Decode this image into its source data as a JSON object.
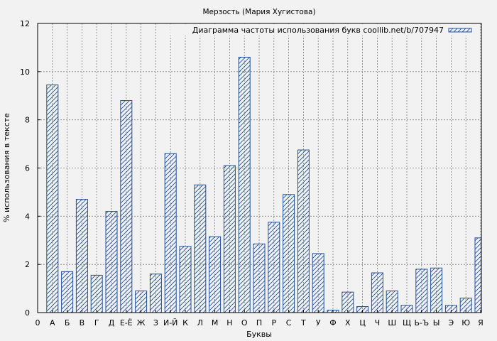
{
  "chart_data": {
    "type": "bar",
    "title": "Мерзость (Мария Хугистова)",
    "xlabel": "Буквы",
    "ylabel": "% использования в тексте",
    "legend": "Диаграмма частоты использования букв coollib.net/b/707947",
    "legend_position": "top-right",
    "grid": true,
    "ylim": [
      0,
      12
    ],
    "yticks": [
      0,
      2,
      4,
      6,
      8,
      10,
      12
    ],
    "x_first_label": "0",
    "categories": [
      "А",
      "Б",
      "В",
      "Г",
      "Д",
      "Е-Ё",
      "Ж",
      "З",
      "И-Й",
      "К",
      "Л",
      "М",
      "Н",
      "О",
      "П",
      "Р",
      "С",
      "Т",
      "У",
      "Ф",
      "Х",
      "Ц",
      "Ч",
      "Ш",
      "Щ",
      "Ь-Ъ",
      "Ы",
      "Э",
      "Ю",
      "Я"
    ],
    "values": [
      9.45,
      1.7,
      4.7,
      1.55,
      4.2,
      8.8,
      0.9,
      1.6,
      6.6,
      2.75,
      5.3,
      3.15,
      6.1,
      10.6,
      2.85,
      3.75,
      4.9,
      6.75,
      2.45,
      0.1,
      0.85,
      0.25,
      1.65,
      0.9,
      0.3,
      1.8,
      1.85,
      0.3,
      0.6,
      3.1
    ],
    "colors": {
      "bar_stroke": "#1f4fa0",
      "grid": "#808080",
      "background": "#f2f2f2"
    }
  }
}
